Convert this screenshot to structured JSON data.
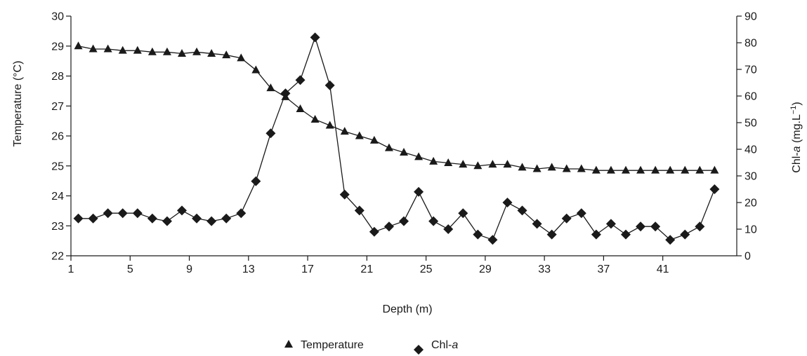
{
  "chart_data": {
    "type": "line",
    "xlabel": "Depth (m)",
    "ylabel": "Temperature (°C)",
    "ylabel_right": {
      "prefix": "Chl-",
      "italic": "a",
      "suffix": " (mg.L",
      "sup": "−1",
      "close": ")"
    },
    "x_ticks": [
      1,
      5,
      9,
      13,
      17,
      21,
      25,
      29,
      33,
      37,
      41
    ],
    "xlim": [
      1,
      46
    ],
    "ylim": [
      22,
      30
    ],
    "y_ticks": [
      22,
      23,
      24,
      25,
      26,
      27,
      28,
      29,
      30
    ],
    "y2lim": [
      0,
      90
    ],
    "y2_ticks": [
      0,
      10,
      20,
      30,
      40,
      50,
      60,
      70,
      80,
      90
    ],
    "x": [
      1.5,
      2.5,
      3.5,
      4.5,
      5.5,
      6.5,
      7.5,
      8.5,
      9.5,
      10.5,
      11.5,
      12.5,
      13.5,
      14.5,
      15.5,
      16.5,
      17.5,
      18.5,
      19.5,
      20.5,
      21.5,
      22.5,
      23.5,
      24.5,
      25.5,
      26.5,
      27.5,
      28.5,
      29.5,
      30.5,
      31.5,
      32.5,
      33.5,
      34.5,
      35.5,
      36.5,
      37.5,
      38.5,
      39.5,
      40.5,
      41.5,
      42.5,
      43.5,
      44.5
    ],
    "series": [
      {
        "name": "Temperature",
        "axis": "left",
        "marker": "triangle",
        "values": [
          29.0,
          28.9,
          28.9,
          28.85,
          28.85,
          28.8,
          28.8,
          28.75,
          28.8,
          28.75,
          28.7,
          28.6,
          28.2,
          27.6,
          27.3,
          26.9,
          26.55,
          26.35,
          26.15,
          26.0,
          25.85,
          25.6,
          25.45,
          25.3,
          25.15,
          25.1,
          25.05,
          25.0,
          25.05,
          25.05,
          24.95,
          24.9,
          24.95,
          24.9,
          24.9,
          24.85,
          24.85,
          24.85,
          24.85,
          24.85,
          24.85,
          24.85,
          24.85,
          24.85
        ]
      },
      {
        "name": "Chl-a",
        "name_parts": {
          "prefix": "Chl-",
          "italic": "a"
        },
        "axis": "right",
        "marker": "diamond",
        "values": [
          14,
          14,
          16,
          16,
          16,
          14,
          13,
          17,
          14,
          13,
          14,
          16,
          28,
          46,
          61,
          66,
          82,
          64,
          23,
          17,
          9,
          11,
          13,
          24,
          13,
          10,
          16,
          8,
          6,
          20,
          17,
          12,
          8,
          14,
          16,
          8,
          12,
          8,
          11,
          11,
          6,
          8,
          11,
          25
        ]
      }
    ],
    "legend_position": "bottom-center",
    "grid": false
  }
}
